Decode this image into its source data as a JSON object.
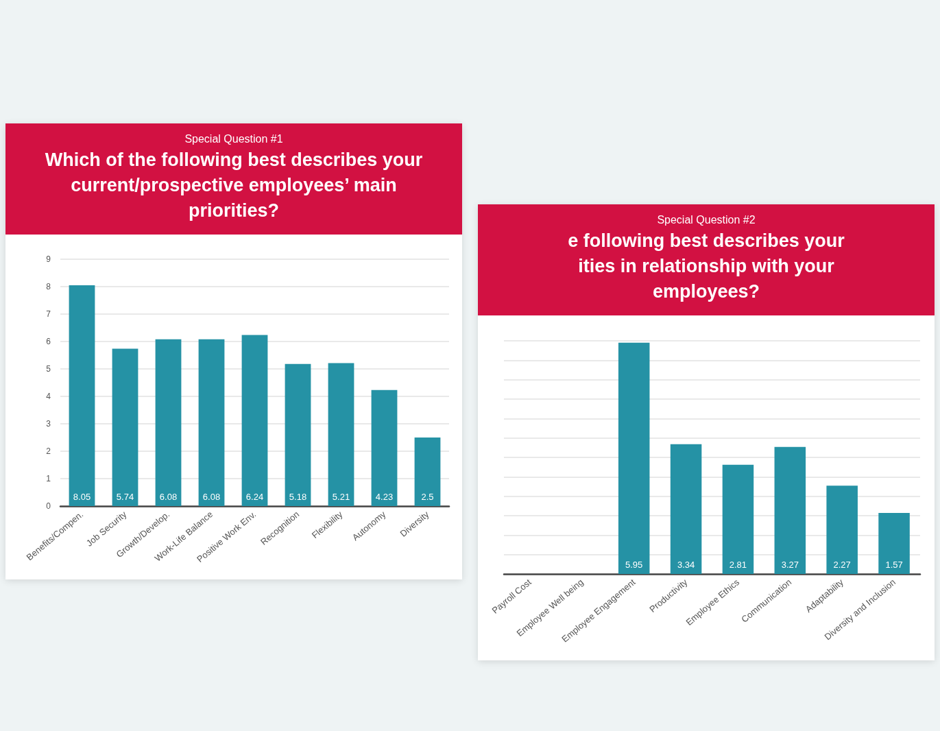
{
  "chart_data": [
    {
      "type": "bar",
      "subtitle": "Special Question #1",
      "title": "Which of the following best describes your\ncurrent/prospective employees’ main\npriorities?",
      "categories": [
        "Benefits/Compen.",
        "Job Security",
        "Growth/Develop.",
        "Work-Life Balance",
        "Positive Work Env.",
        "Recognition",
        "Flexibility",
        "Autonomy",
        "Diversity"
      ],
      "values": [
        8.05,
        5.74,
        6.08,
        6.08,
        6.24,
        5.18,
        5.21,
        4.23,
        2.5
      ],
      "color": "#2592a5",
      "ylim": [
        0,
        9
      ],
      "yticks": [
        0,
        1,
        2,
        3,
        4,
        5,
        6,
        7,
        8,
        9
      ],
      "grid": "y",
      "data_labels": true
    },
    {
      "type": "bar",
      "subtitle": "Special Question #2",
      "title": "e following best describes your\nities in relationship with your\nemployees?",
      "categories": [
        "Payroll Cost",
        "Employee Well being",
        "Employee Engagement",
        "Productivity",
        "Employee Ethics",
        "Communication",
        "Adaptability",
        "Diversity and Inclusion"
      ],
      "values": [
        null,
        null,
        5.95,
        3.34,
        2.81,
        3.27,
        2.27,
        1.57
      ],
      "color": "#2592a5",
      "ylim": [
        0,
        6
      ],
      "yticks": [
        {
          "value": 0,
          "label": null
        },
        {
          "value": 0.5,
          "label": null
        },
        {
          "value": 1,
          "label": null
        },
        {
          "value": 1.5,
          "label": null
        },
        {
          "value": 2,
          "label": null
        },
        {
          "value": 2.5,
          "label": null
        },
        {
          "value": 3,
          "label": null
        },
        {
          "value": 3.5,
          "label": null
        },
        {
          "value": 4,
          "label": null
        },
        {
          "value": 4.5,
          "label": null
        },
        {
          "value": 5,
          "label": null
        },
        {
          "value": 5.5,
          "label": null
        },
        {
          "value": 6,
          "label": null
        }
      ],
      "grid": "y",
      "tick_labels": "x",
      "data_labels": true
    }
  ]
}
